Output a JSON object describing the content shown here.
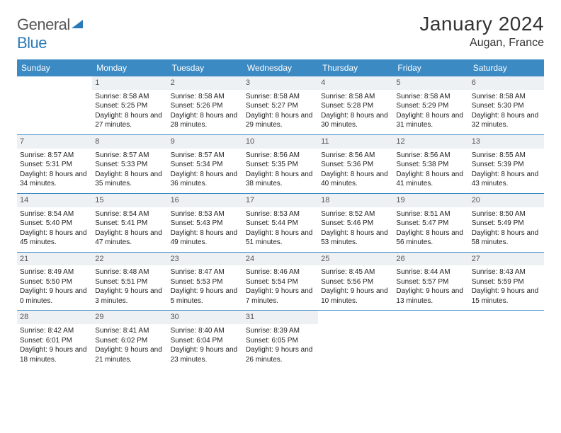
{
  "brand": {
    "word1": "General",
    "word2": "Blue"
  },
  "title": {
    "month": "January 2024",
    "location": "Augan, France"
  },
  "colors": {
    "header_bg": "#3b8ac4",
    "header_text": "#ffffff",
    "daynum_bg": "#eef1f3",
    "daynum_text": "#555555",
    "body_text": "#222222",
    "row_divider": "#3b8ac4"
  },
  "dayNames": [
    "Sunday",
    "Monday",
    "Tuesday",
    "Wednesday",
    "Thursday",
    "Friday",
    "Saturday"
  ],
  "weeks": [
    [
      {
        "day": "",
        "sunrise": "",
        "sunset": "",
        "daylight": ""
      },
      {
        "day": "1",
        "sunrise": "Sunrise: 8:58 AM",
        "sunset": "Sunset: 5:25 PM",
        "daylight": "Daylight: 8 hours and 27 minutes."
      },
      {
        "day": "2",
        "sunrise": "Sunrise: 8:58 AM",
        "sunset": "Sunset: 5:26 PM",
        "daylight": "Daylight: 8 hours and 28 minutes."
      },
      {
        "day": "3",
        "sunrise": "Sunrise: 8:58 AM",
        "sunset": "Sunset: 5:27 PM",
        "daylight": "Daylight: 8 hours and 29 minutes."
      },
      {
        "day": "4",
        "sunrise": "Sunrise: 8:58 AM",
        "sunset": "Sunset: 5:28 PM",
        "daylight": "Daylight: 8 hours and 30 minutes."
      },
      {
        "day": "5",
        "sunrise": "Sunrise: 8:58 AM",
        "sunset": "Sunset: 5:29 PM",
        "daylight": "Daylight: 8 hours and 31 minutes."
      },
      {
        "day": "6",
        "sunrise": "Sunrise: 8:58 AM",
        "sunset": "Sunset: 5:30 PM",
        "daylight": "Daylight: 8 hours and 32 minutes."
      }
    ],
    [
      {
        "day": "7",
        "sunrise": "Sunrise: 8:57 AM",
        "sunset": "Sunset: 5:31 PM",
        "daylight": "Daylight: 8 hours and 34 minutes."
      },
      {
        "day": "8",
        "sunrise": "Sunrise: 8:57 AM",
        "sunset": "Sunset: 5:33 PM",
        "daylight": "Daylight: 8 hours and 35 minutes."
      },
      {
        "day": "9",
        "sunrise": "Sunrise: 8:57 AM",
        "sunset": "Sunset: 5:34 PM",
        "daylight": "Daylight: 8 hours and 36 minutes."
      },
      {
        "day": "10",
        "sunrise": "Sunrise: 8:56 AM",
        "sunset": "Sunset: 5:35 PM",
        "daylight": "Daylight: 8 hours and 38 minutes."
      },
      {
        "day": "11",
        "sunrise": "Sunrise: 8:56 AM",
        "sunset": "Sunset: 5:36 PM",
        "daylight": "Daylight: 8 hours and 40 minutes."
      },
      {
        "day": "12",
        "sunrise": "Sunrise: 8:56 AM",
        "sunset": "Sunset: 5:38 PM",
        "daylight": "Daylight: 8 hours and 41 minutes."
      },
      {
        "day": "13",
        "sunrise": "Sunrise: 8:55 AM",
        "sunset": "Sunset: 5:39 PM",
        "daylight": "Daylight: 8 hours and 43 minutes."
      }
    ],
    [
      {
        "day": "14",
        "sunrise": "Sunrise: 8:54 AM",
        "sunset": "Sunset: 5:40 PM",
        "daylight": "Daylight: 8 hours and 45 minutes."
      },
      {
        "day": "15",
        "sunrise": "Sunrise: 8:54 AM",
        "sunset": "Sunset: 5:41 PM",
        "daylight": "Daylight: 8 hours and 47 minutes."
      },
      {
        "day": "16",
        "sunrise": "Sunrise: 8:53 AM",
        "sunset": "Sunset: 5:43 PM",
        "daylight": "Daylight: 8 hours and 49 minutes."
      },
      {
        "day": "17",
        "sunrise": "Sunrise: 8:53 AM",
        "sunset": "Sunset: 5:44 PM",
        "daylight": "Daylight: 8 hours and 51 minutes."
      },
      {
        "day": "18",
        "sunrise": "Sunrise: 8:52 AM",
        "sunset": "Sunset: 5:46 PM",
        "daylight": "Daylight: 8 hours and 53 minutes."
      },
      {
        "day": "19",
        "sunrise": "Sunrise: 8:51 AM",
        "sunset": "Sunset: 5:47 PM",
        "daylight": "Daylight: 8 hours and 56 minutes."
      },
      {
        "day": "20",
        "sunrise": "Sunrise: 8:50 AM",
        "sunset": "Sunset: 5:49 PM",
        "daylight": "Daylight: 8 hours and 58 minutes."
      }
    ],
    [
      {
        "day": "21",
        "sunrise": "Sunrise: 8:49 AM",
        "sunset": "Sunset: 5:50 PM",
        "daylight": "Daylight: 9 hours and 0 minutes."
      },
      {
        "day": "22",
        "sunrise": "Sunrise: 8:48 AM",
        "sunset": "Sunset: 5:51 PM",
        "daylight": "Daylight: 9 hours and 3 minutes."
      },
      {
        "day": "23",
        "sunrise": "Sunrise: 8:47 AM",
        "sunset": "Sunset: 5:53 PM",
        "daylight": "Daylight: 9 hours and 5 minutes."
      },
      {
        "day": "24",
        "sunrise": "Sunrise: 8:46 AM",
        "sunset": "Sunset: 5:54 PM",
        "daylight": "Daylight: 9 hours and 7 minutes."
      },
      {
        "day": "25",
        "sunrise": "Sunrise: 8:45 AM",
        "sunset": "Sunset: 5:56 PM",
        "daylight": "Daylight: 9 hours and 10 minutes."
      },
      {
        "day": "26",
        "sunrise": "Sunrise: 8:44 AM",
        "sunset": "Sunset: 5:57 PM",
        "daylight": "Daylight: 9 hours and 13 minutes."
      },
      {
        "day": "27",
        "sunrise": "Sunrise: 8:43 AM",
        "sunset": "Sunset: 5:59 PM",
        "daylight": "Daylight: 9 hours and 15 minutes."
      }
    ],
    [
      {
        "day": "28",
        "sunrise": "Sunrise: 8:42 AM",
        "sunset": "Sunset: 6:01 PM",
        "daylight": "Daylight: 9 hours and 18 minutes."
      },
      {
        "day": "29",
        "sunrise": "Sunrise: 8:41 AM",
        "sunset": "Sunset: 6:02 PM",
        "daylight": "Daylight: 9 hours and 21 minutes."
      },
      {
        "day": "30",
        "sunrise": "Sunrise: 8:40 AM",
        "sunset": "Sunset: 6:04 PM",
        "daylight": "Daylight: 9 hours and 23 minutes."
      },
      {
        "day": "31",
        "sunrise": "Sunrise: 8:39 AM",
        "sunset": "Sunset: 6:05 PM",
        "daylight": "Daylight: 9 hours and 26 minutes."
      },
      {
        "day": "",
        "sunrise": "",
        "sunset": "",
        "daylight": ""
      },
      {
        "day": "",
        "sunrise": "",
        "sunset": "",
        "daylight": ""
      },
      {
        "day": "",
        "sunrise": "",
        "sunset": "",
        "daylight": ""
      }
    ]
  ]
}
